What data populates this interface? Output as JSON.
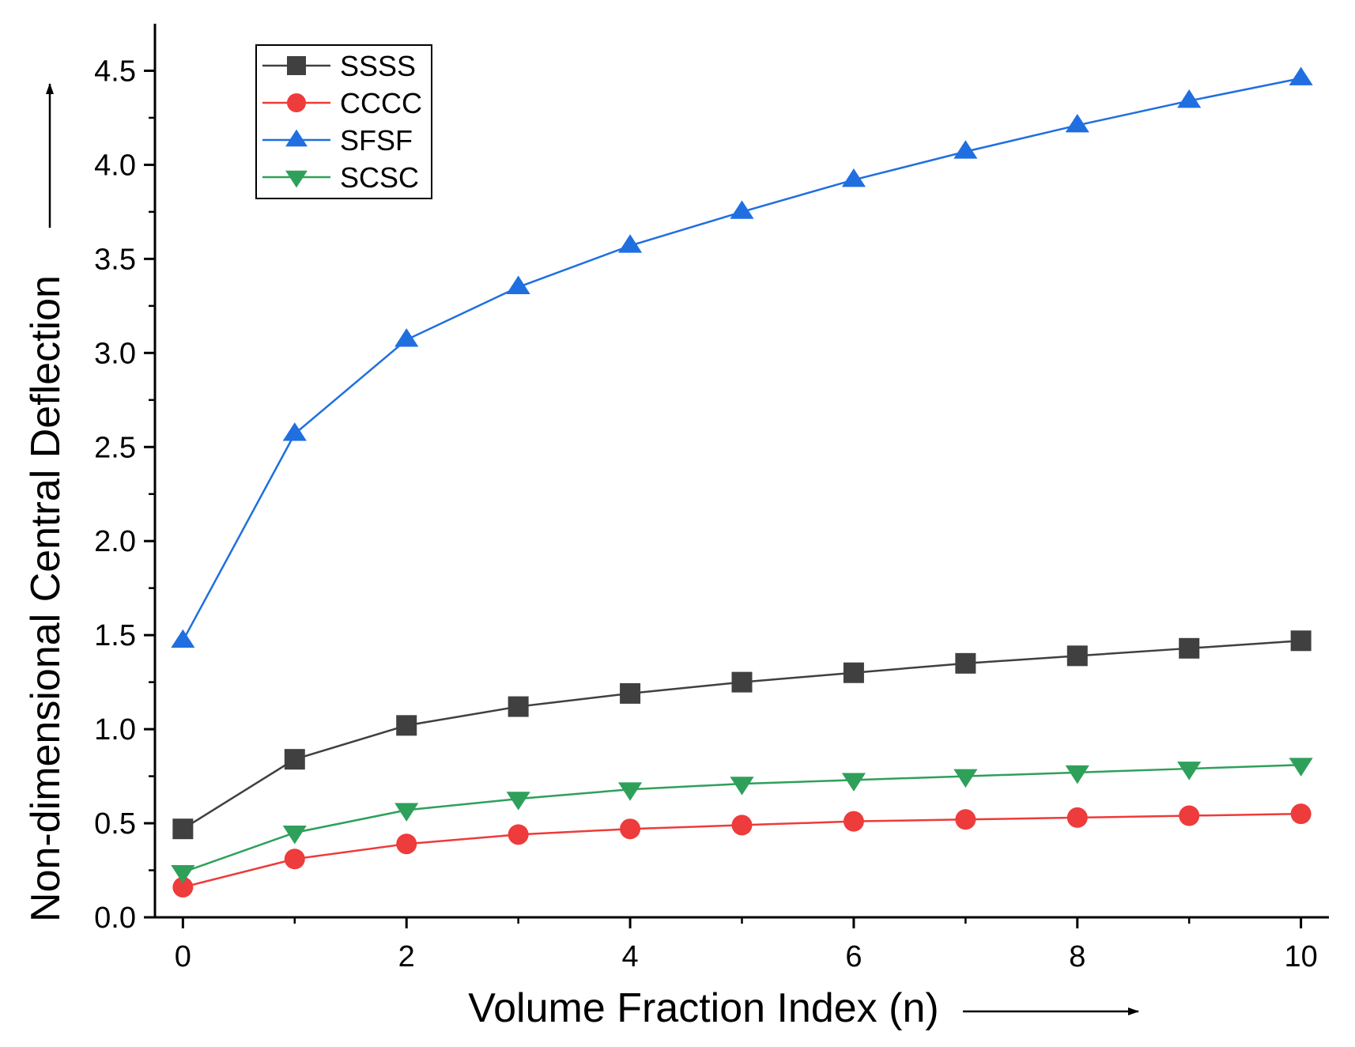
{
  "chart_data": {
    "type": "line",
    "title": "",
    "xlabel": "Volume Fraction Index (n)",
    "ylabel": "Non-dimensional Central Deflection",
    "x": [
      0,
      1,
      2,
      3,
      4,
      5,
      6,
      7,
      8,
      9,
      10
    ],
    "xlim": [
      -0.25,
      10.25
    ],
    "ylim": [
      0,
      4.75
    ],
    "x_ticks": [
      0,
      2,
      4,
      6,
      8,
      10
    ],
    "x_tick_labels": [
      "0",
      "2",
      "4",
      "6",
      "8",
      "10"
    ],
    "x_minor_ticks": [
      1,
      3,
      5,
      7,
      9
    ],
    "y_ticks": [
      0,
      0.5,
      1,
      1.5,
      2,
      2.5,
      3,
      3.5,
      4,
      4.5
    ],
    "y_tick_labels": [
      "0.0",
      "0.5",
      "1.0",
      "1.5",
      "2.0",
      "2.5",
      "3.0",
      "3.5",
      "4.0",
      "4.5"
    ],
    "grid": false,
    "legend_position": "top-left",
    "series": [
      {
        "name": "SSSS",
        "color": "#404040",
        "marker": "square",
        "values": [
          0.47,
          0.84,
          1.02,
          1.12,
          1.19,
          1.25,
          1.3,
          1.35,
          1.39,
          1.43,
          1.47
        ]
      },
      {
        "name": "CCCC",
        "color": "#ee3b3b",
        "marker": "circle",
        "values": [
          0.16,
          0.31,
          0.39,
          0.44,
          0.47,
          0.49,
          0.51,
          0.52,
          0.53,
          0.54,
          0.55
        ]
      },
      {
        "name": "SFSF",
        "color": "#1f6fe0",
        "marker": "triangle-up",
        "values": [
          1.47,
          2.57,
          3.07,
          3.35,
          3.57,
          3.75,
          3.92,
          4.07,
          4.21,
          4.34,
          4.46
        ]
      },
      {
        "name": "SCSC",
        "color": "#2ea05a",
        "marker": "triangle-down",
        "values": [
          0.24,
          0.45,
          0.57,
          0.63,
          0.68,
          0.71,
          0.73,
          0.75,
          0.77,
          0.79,
          0.81
        ]
      }
    ]
  }
}
